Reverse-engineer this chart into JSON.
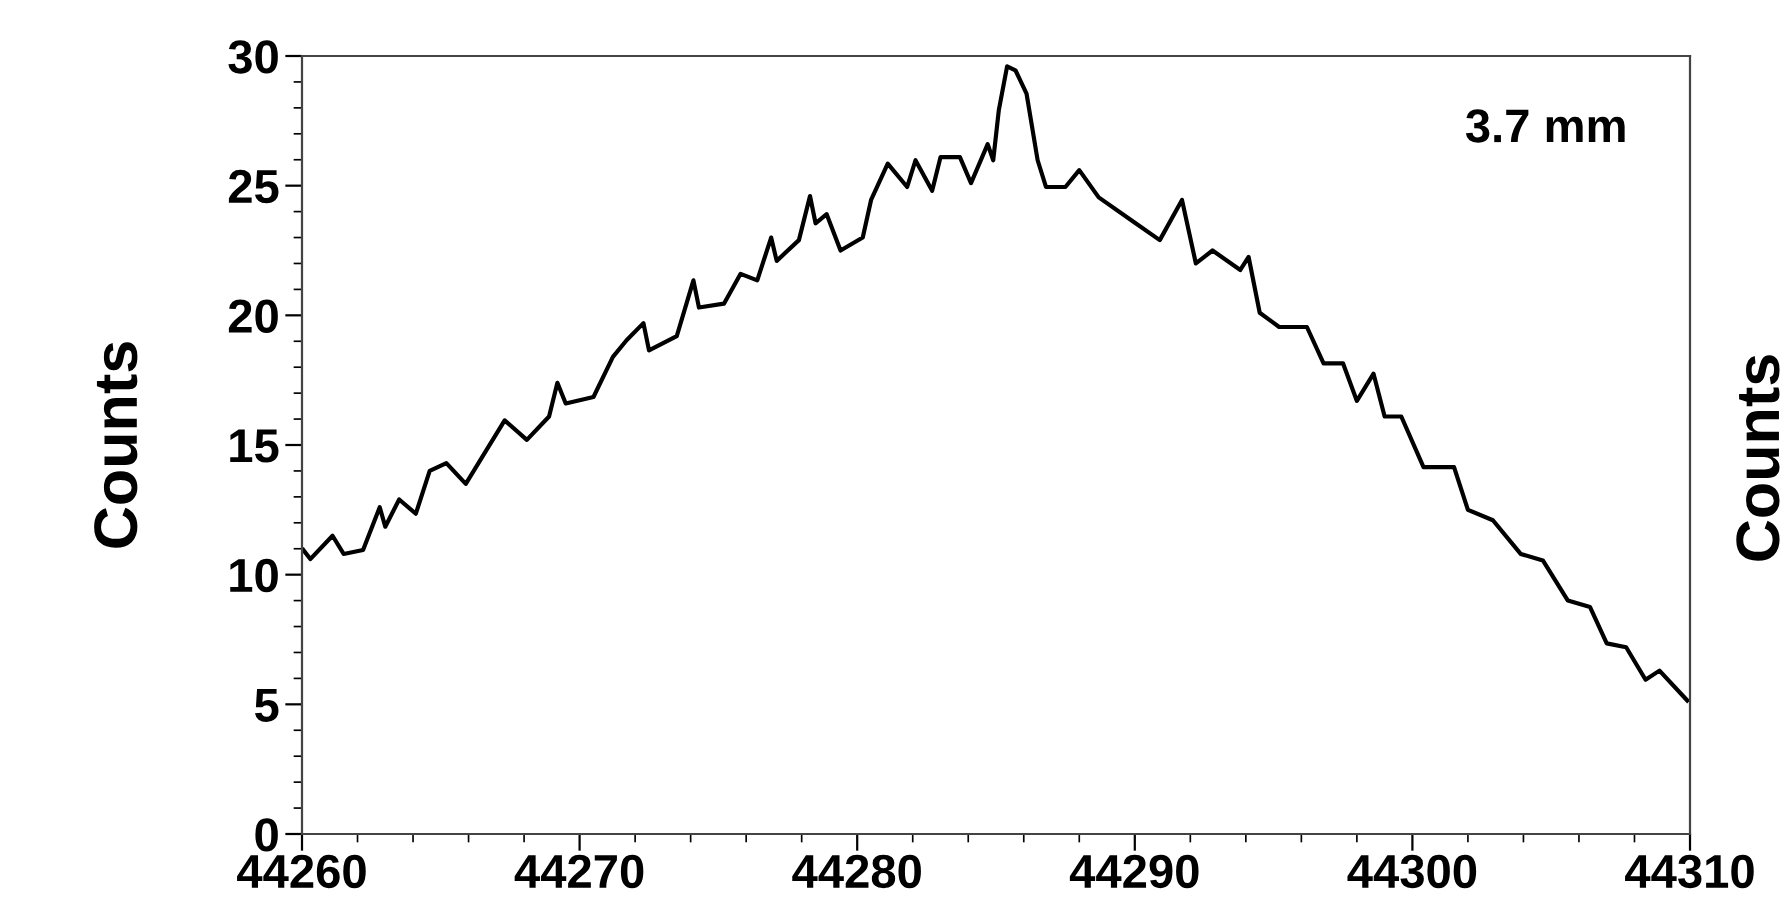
{
  "chart_data": {
    "type": "line",
    "ylabel": "Counts",
    "annotations": [
      "3.7 mm",
      "Counts"
    ],
    "x": [
      44260.05,
      44260.3,
      44261.1,
      44261.5,
      44262.2,
      44262.8,
      44263.0,
      44263.5,
      44264.1,
      44264.6,
      44265.2,
      44265.9,
      44266.5,
      44267.3,
      44268.1,
      44268.9,
      44269.2,
      44269.5,
      44270.5,
      44271.2,
      44271.7,
      44272.3,
      44272.5,
      44273.5,
      44274.1,
      44274.3,
      44275.2,
      44275.8,
      44276.4,
      44276.9,
      44277.1,
      44277.9,
      44278.3,
      44278.5,
      44278.9,
      44279.4,
      44280.2,
      44280.5,
      44281.1,
      44281.8,
      44282.1,
      44282.7,
      44283.0,
      44283.7,
      44284.1,
      44284.7,
      44284.9,
      44285.1,
      44285.4,
      44285.7,
      44286.1,
      44286.5,
      44286.8,
      44287.5,
      44288.0,
      44288.7,
      44289.9,
      44290.9,
      44291.7,
      44292.2,
      44292.8,
      44293.8,
      44294.1,
      44294.5,
      44295.2,
      44296.2,
      44296.8,
      44297.5,
      44298.0,
      44298.6,
      44299.0,
      44299.6,
      44300.4,
      44301.5,
      44302.0,
      44302.9,
      44303.9,
      44304.7,
      44305.6,
      44306.4,
      44307.0,
      44307.7,
      44308.4,
      44308.9,
      44309.9
    ],
    "series": [
      {
        "color": "#000000",
        "values": [
          10.95,
          10.6,
          11.5,
          10.8,
          10.95,
          12.6,
          11.85,
          12.9,
          12.35,
          14.0,
          14.3,
          13.5,
          14.55,
          15.95,
          15.2,
          16.1,
          17.4,
          16.6,
          16.85,
          18.4,
          19.05,
          19.7,
          18.65,
          19.2,
          21.35,
          20.3,
          20.45,
          21.6,
          21.35,
          23.0,
          22.1,
          22.9,
          24.6,
          23.55,
          23.9,
          22.5,
          23.0,
          24.45,
          25.85,
          24.95,
          25.98,
          24.8,
          26.1,
          26.1,
          25.1,
          26.6,
          25.98,
          27.9,
          29.6,
          29.45,
          28.55,
          25.98,
          24.95,
          24.95,
          25.6,
          24.55,
          23.65,
          22.9,
          24.45,
          22.0,
          22.5,
          21.75,
          22.25,
          20.1,
          19.55,
          19.55,
          18.15,
          18.15,
          16.7,
          17.75,
          16.1,
          16.1,
          14.15,
          14.15,
          12.5,
          12.1,
          10.8,
          10.55,
          9.0,
          8.75,
          7.35,
          7.2,
          5.95,
          6.3,
          5.15
        ]
      }
    ],
    "xlim": [
      44260,
      44310
    ],
    "xticks": [
      44260,
      44270,
      44280,
      44290,
      44300,
      44310
    ],
    "ylim": [
      0,
      30
    ],
    "yticks": [
      0,
      5,
      10,
      15,
      20,
      25,
      30
    ],
    "grid": false,
    "marker": "none",
    "line_style": "solid"
  }
}
